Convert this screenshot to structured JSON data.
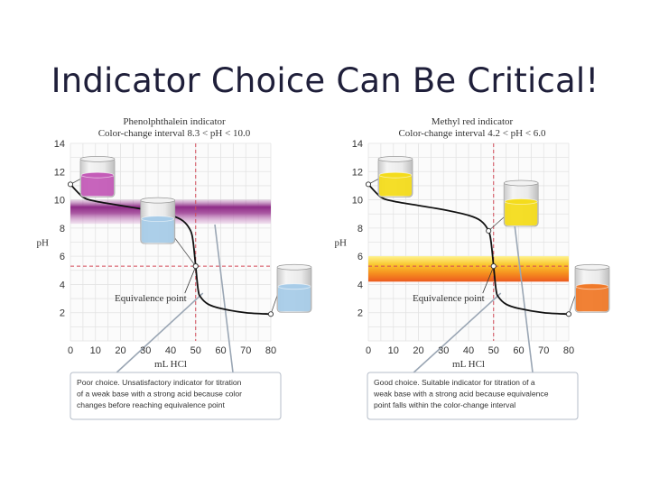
{
  "slide": {
    "title": "Indicator Choice Can Be Critical!"
  },
  "chart_data": [
    {
      "type": "line",
      "title": "Phenolphthalein indicator",
      "subtitle": "Color-change interval 8.3 < pH < 10.0",
      "xlabel": "mL HCl",
      "ylabel": "pH",
      "xlim": [
        0,
        80
      ],
      "ylim": [
        0,
        14
      ],
      "xticks": [
        0,
        10,
        20,
        30,
        40,
        50,
        60,
        70,
        80
      ],
      "yticks": [
        2,
        4,
        6,
        8,
        10,
        12,
        14
      ],
      "equivalence_x": 50,
      "equivalence_label": "Equivalence point",
      "color_band": [
        8.3,
        10.0
      ],
      "band_color": "#a4489a",
      "grid": true,
      "series": [
        {
          "x": [
            0,
            5,
            10,
            20,
            30,
            40,
            45,
            48,
            49,
            50,
            51,
            52,
            55,
            60,
            70,
            80
          ],
          "y": [
            11.1,
            10.2,
            9.9,
            9.6,
            9.3,
            8.9,
            8.5,
            7.8,
            7.0,
            5.3,
            3.6,
            3.1,
            2.6,
            2.3,
            2.0,
            1.9
          ]
        }
      ],
      "beakers": [
        {
          "x": 0,
          "y": 11.1,
          "liquid": "#c45cb8"
        },
        {
          "x": 50,
          "y": 5.3,
          "liquid": "#a8cce8"
        },
        {
          "x": 80,
          "y": 1.9,
          "liquid": "#a8cce8"
        }
      ],
      "caption": [
        "Poor choice. Unsatisfactory indicator for titration",
        "of a weak base with a strong acid because color",
        "changes before reaching equivalence point"
      ]
    },
    {
      "type": "line",
      "title": "Methyl red indicator",
      "subtitle": "Color-change interval 4.2 < pH < 6.0",
      "xlabel": "mL HCl",
      "ylabel": "pH",
      "xlim": [
        0,
        80
      ],
      "ylim": [
        0,
        14
      ],
      "xticks": [
        0,
        10,
        20,
        30,
        40,
        50,
        60,
        70,
        80
      ],
      "yticks": [
        2,
        4,
        6,
        8,
        10,
        12,
        14
      ],
      "equivalence_x": 50,
      "equivalence_label": "Equivalence point",
      "color_band": [
        4.2,
        6.0
      ],
      "band_color": "#f5a020",
      "grid": true,
      "series": [
        {
          "x": [
            0,
            5,
            10,
            20,
            30,
            40,
            45,
            48,
            49,
            50,
            51,
            52,
            55,
            60,
            70,
            80
          ],
          "y": [
            11.1,
            10.2,
            9.9,
            9.6,
            9.3,
            8.9,
            8.5,
            7.8,
            7.0,
            5.3,
            3.6,
            3.1,
            2.6,
            2.3,
            2.0,
            1.9
          ]
        }
      ],
      "beakers": [
        {
          "x": 0,
          "y": 11.1,
          "liquid": "#f4dc1c"
        },
        {
          "x": 48,
          "y": 7.8,
          "liquid": "#f4dc1c"
        },
        {
          "x": 80,
          "y": 1.9,
          "liquid": "#f07a2a"
        }
      ],
      "caption": [
        "Good choice. Suitable indicator for titration of a",
        "weak base with a strong acid because equivalence",
        "point falls within the color-change interval"
      ]
    }
  ]
}
